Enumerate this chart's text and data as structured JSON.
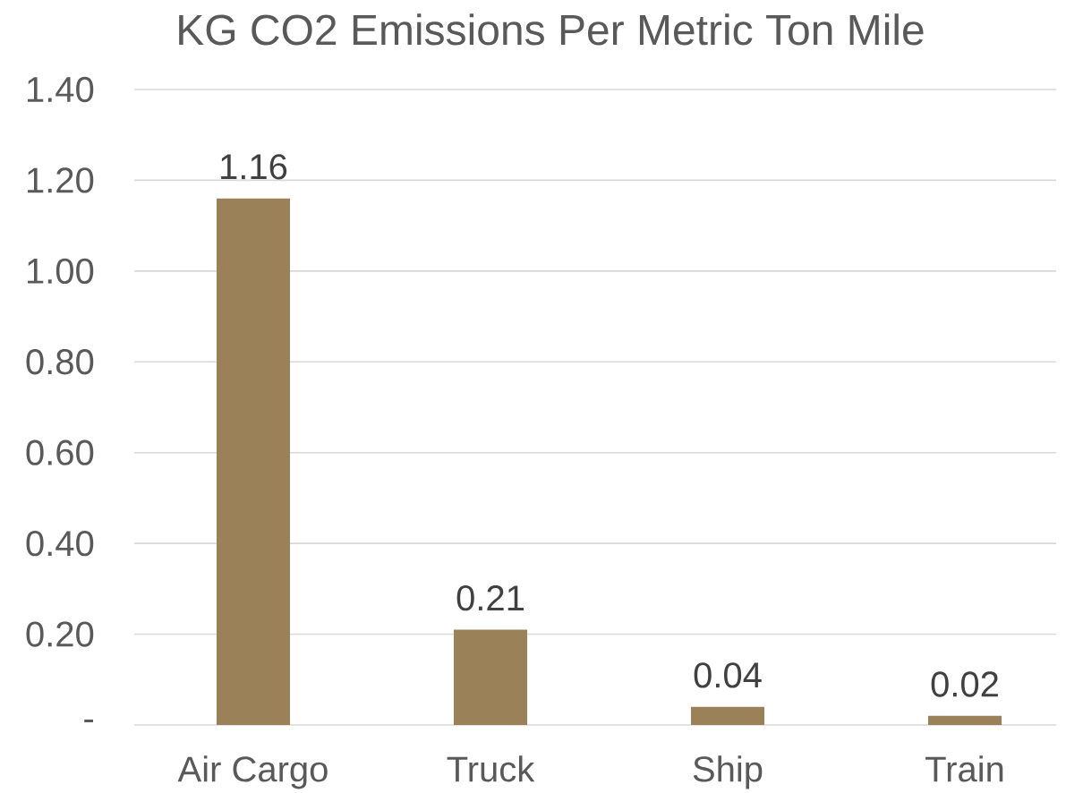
{
  "chart_data": {
    "type": "bar",
    "title": "KG  CO2 Emissions Per Metric Ton Mile",
    "categories": [
      "Air Cargo",
      "Truck",
      "Ship",
      "Train"
    ],
    "values": [
      1.16,
      0.21,
      0.04,
      0.02
    ],
    "color": "#9b8157",
    "ylim": [
      0,
      1.4
    ],
    "yticks": [
      {
        "value": 0,
        "label": "-"
      },
      {
        "value": 0.2,
        "label": "0.20"
      },
      {
        "value": 0.4,
        "label": "0.40"
      },
      {
        "value": 0.6,
        "label": "0.60"
      },
      {
        "value": 0.8,
        "label": "0.80"
      },
      {
        "value": 1.0,
        "label": "1.00"
      },
      {
        "value": 1.2,
        "label": "1.20"
      },
      {
        "value": 1.4,
        "label": "1.40"
      }
    ],
    "grid": "y",
    "data_labels": true
  }
}
